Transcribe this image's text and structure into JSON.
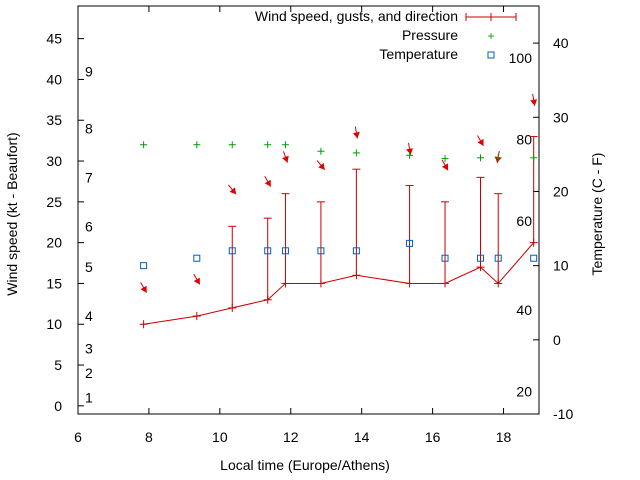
{
  "chart_data": {
    "type": "line",
    "xlabel": "Local time (Europe/Athens)",
    "ylabel": "Wind speed (kt - Beaufort)",
    "y2label": "Temperature (C - F)",
    "xlim": [
      6,
      19
    ],
    "ylim": [
      -1,
      49
    ],
    "y2lim": [
      -10,
      45
    ],
    "x_ticks": [
      6,
      8,
      10,
      12,
      14,
      16,
      18
    ],
    "y_ticks": [
      0,
      5,
      10,
      15,
      20,
      25,
      30,
      35,
      40,
      45
    ],
    "y2_ticks": [
      -10,
      0,
      10,
      20,
      30,
      40
    ],
    "beaufort_labels": [
      {
        "label": "1",
        "y": 1
      },
      {
        "label": "2",
        "y": 4
      },
      {
        "label": "3",
        "y": 7
      },
      {
        "label": "4",
        "y": 11
      },
      {
        "label": "5",
        "y": 17
      },
      {
        "label": "6",
        "y": 22
      },
      {
        "label": "7",
        "y": 28
      },
      {
        "label": "8",
        "y": 34
      },
      {
        "label": "9",
        "y": 41
      }
    ],
    "fahrenheit_labels": [
      {
        "label": "20",
        "y": -7
      },
      {
        "label": "40",
        "y": 4
      },
      {
        "label": "60",
        "y": 16
      },
      {
        "label": "80",
        "y": 27
      },
      {
        "label": "100",
        "y": 38
      }
    ],
    "legend": {
      "wind": "Wind speed, gusts, and direction",
      "pressure": "Pressure",
      "temperature": "Temperature"
    },
    "legend_position": "top-right",
    "colors": {
      "wind": "#cc0000",
      "pressure": "#00a000",
      "temperature": "#0060c0",
      "arrow": "#dd0000"
    },
    "wind": {
      "x": [
        7.85,
        9.35,
        10.35,
        11.35,
        11.85,
        12.85,
        13.85,
        15.35,
        16.35,
        17.35,
        17.85,
        18.85
      ],
      "speed": [
        10,
        11,
        12,
        13,
        15,
        15,
        16,
        15,
        15,
        17,
        15,
        20
      ],
      "gust": [
        10,
        11,
        22,
        23,
        26,
        25,
        29,
        27,
        25,
        28,
        26,
        33
      ],
      "direction_deg": [
        330,
        330,
        320,
        330,
        340,
        320,
        350,
        350,
        330,
        330,
        10,
        350
      ]
    },
    "arrow_y": [
      14.5,
      15.5,
      26.5,
      27.5,
      30.5,
      29.5,
      33.5,
      31.5,
      29.5,
      32.5,
      30.5,
      37.5
    ],
    "pressure_y": [
      32,
      32,
      32,
      32,
      32,
      31.2,
      31,
      30.7,
      30.3,
      30.4,
      30.4,
      30.4
    ],
    "temperature": [
      10,
      11,
      12,
      12,
      12,
      12,
      12,
      13,
      11,
      11,
      11,
      11
    ]
  }
}
